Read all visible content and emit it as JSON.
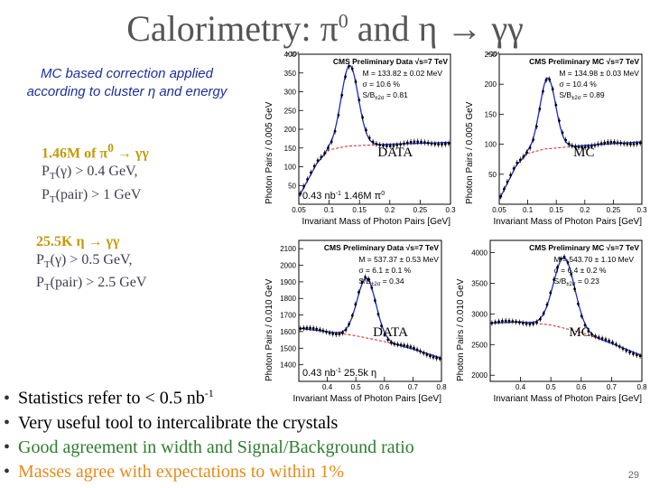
{
  "slide": {
    "title": "Calorimetry: π",
    "title_sup": "0",
    "title_rest": " and η → γγ",
    "mc_note_line1": "MC based correction applied",
    "mc_note_line2": "according to cluster η and energy",
    "pi0_cuts": {
      "head": "1.46M of π",
      "head_sup": "0",
      "head_tail": " → γγ",
      "line1": "P",
      "line1_sub": "T",
      "line1_rest": "(γ) > 0.4 GeV,",
      "line2": "P",
      "line2_sub": "T",
      "line2_rest": "(pair) > 1 GeV"
    },
    "eta_cuts": {
      "head": "25.5K η → γγ",
      "line1": "P",
      "line1_sub": "T",
      "line1_rest": "(γ) > 0.5 GeV,",
      "line2": "P",
      "line2_sub": "T",
      "line2_rest": "(pair) > 2.5 GeV"
    },
    "bullets": [
      {
        "text": "Statistics  refer to < 0.5 nb",
        "sup": "-1"
      },
      {
        "text": "Very useful tool to intercalibrate the crystals",
        "sup": ""
      },
      {
        "text": "Good agreement in width and Signal/Background ratio",
        "sup": ""
      },
      {
        "text": "Masses agree with expectations to within 1%",
        "sup": ""
      }
    ],
    "page_number": "29",
    "colors": {
      "title": "#555555",
      "note": "#1c2f9c",
      "cut_head": "#c39a06",
      "bullet3": "#2e7d2e",
      "bullet4": "#e88a18"
    }
  },
  "chart_data": [
    {
      "type": "scatter",
      "id": "pi0-data",
      "title": "CMS Preliminary Data √s=7 TeV",
      "ylabel": "Photon Pairs / 0.005 GeV",
      "xlabel": "Invariant Mass of Photon Pairs [GeV]",
      "y_multiplier": "×10³",
      "xlim": [
        0.05,
        0.3
      ],
      "ylim": [
        0,
        400
      ],
      "xticks": [
        0.05,
        0.1,
        0.15,
        0.2,
        0.25,
        0.3
      ],
      "xtick_labels": [
        "0.05",
        "0.1",
        "0.15",
        "0.2",
        "0.25",
        "0.3"
      ],
      "yticks": [
        50,
        100,
        150,
        200,
        250,
        300,
        350,
        400
      ],
      "ytick_labels": [
        "50",
        "100",
        "150",
        "200",
        "250",
        "300",
        "350",
        "400"
      ],
      "fit": {
        "peak": 0.13382,
        "sigma": 0.0142,
        "amp": 215,
        "bkg": [
          [
            0.05,
            20
          ],
          [
            0.08,
            110
          ],
          [
            0.1,
            145
          ],
          [
            0.13,
            155
          ],
          [
            0.2,
            160
          ],
          [
            0.3,
            165
          ]
        ]
      },
      "stats": [
        {
          "line": "M = 133.82 ± 0.02 MeV"
        },
        {
          "line": "σ = 10.6 %"
        },
        {
          "line": "S/B",
          "sub": "±2σ",
          "tail": " = 0.81"
        }
      ],
      "tag": "DATA",
      "caption": "0.43 nb",
      "caption_sup": "-1",
      "caption_tail": " 1.46M π",
      "caption_sup2": "0"
    },
    {
      "type": "scatter",
      "id": "pi0-mc",
      "title": "CMS Preliminary MC √s=7 TeV",
      "ylabel": "Photon Pairs / 0.005 GeV",
      "xlabel": "Invariant Mass of Photon Pairs [GeV]",
      "y_multiplier": "×10³",
      "xlim": [
        0.05,
        0.3
      ],
      "ylim": [
        0,
        250
      ],
      "xticks": [
        0.05,
        0.1,
        0.15,
        0.2,
        0.25,
        0.3
      ],
      "xtick_labels": [
        "0.05",
        "0.1",
        "0.15",
        "0.2",
        "0.25",
        "0.3"
      ],
      "yticks": [
        50,
        100,
        150,
        200,
        250
      ],
      "ytick_labels": [
        "50",
        "100",
        "150",
        "200",
        "250"
      ],
      "fit": {
        "peak": 0.13498,
        "sigma": 0.014,
        "amp": 118,
        "bkg": [
          [
            0.05,
            8
          ],
          [
            0.08,
            65
          ],
          [
            0.1,
            85
          ],
          [
            0.13,
            92
          ],
          [
            0.2,
            98
          ],
          [
            0.3,
            104
          ]
        ]
      },
      "stats": [
        {
          "line": "M = 134.98 ± 0.03 MeV"
        },
        {
          "line": "σ = 10.4 %"
        },
        {
          "line": "S/B",
          "sub": "±2σ",
          "tail": " = 0.89"
        }
      ],
      "tag": "MC"
    },
    {
      "type": "scatter",
      "id": "eta-data",
      "title": "CMS Preliminary Data √s=7 TeV",
      "ylabel": "Photon Pairs / 0.010 GeV",
      "xlabel": "Invariant Mass of Photon Pairs [GeV]",
      "xlim": [
        0.3,
        0.8
      ],
      "ylim": [
        1300,
        2150
      ],
      "xticks": [
        0.4,
        0.5,
        0.6,
        0.7,
        0.8
      ],
      "xtick_labels": [
        "0.4",
        "0.5",
        "0.6",
        "0.7",
        "0.8"
      ],
      "yticks": [
        1400,
        1500,
        1600,
        1700,
        1800,
        1900,
        2000,
        2100
      ],
      "ytick_labels": [
        "1400",
        "1500",
        "1600",
        "1700",
        "1800",
        "1900",
        "2000",
        "2100"
      ],
      "fit": {
        "peak": 0.53737,
        "sigma": 0.0328,
        "amp": 360,
        "bkg": [
          [
            0.3,
            1620
          ],
          [
            0.4,
            1600
          ],
          [
            0.5,
            1575
          ],
          [
            0.6,
            1540
          ],
          [
            0.7,
            1495
          ],
          [
            0.8,
            1440
          ]
        ]
      },
      "stats": [
        {
          "line": "M = 537.37 ± 0.53 MeV"
        },
        {
          "line": "σ = 6.1 ± 0.1 %"
        },
        {
          "line": "S/B",
          "sub": "±2σ",
          "tail": " = 0.34"
        }
      ],
      "tag": "DATA",
      "caption": "0.43 nb",
      "caption_sup": "-1",
      "caption_tail": " 25.5k η"
    },
    {
      "type": "scatter",
      "id": "eta-mc",
      "title": "CMS Preliminary MC √s=7 TeV",
      "ylabel": "Photon Pairs / 0.010 GeV",
      "xlabel": "Invariant Mass of Photon Pairs [GeV]",
      "xlim": [
        0.3,
        0.8
      ],
      "ylim": [
        1900,
        4200
      ],
      "xticks": [
        0.4,
        0.5,
        0.6,
        0.7,
        0.8
      ],
      "xtick_labels": [
        "0.4",
        "0.5",
        "0.6",
        "0.7",
        "0.8"
      ],
      "yticks": [
        2000,
        2500,
        3000,
        3500,
        4000
      ],
      "ytick_labels": [
        "2000",
        "2500",
        "3000",
        "3500",
        "4000"
      ],
      "fit": {
        "peak": 0.5437,
        "sigma": 0.0348,
        "amp": 1150,
        "bkg": [
          [
            0.3,
            2850
          ],
          [
            0.4,
            2870
          ],
          [
            0.5,
            2820
          ],
          [
            0.6,
            2700
          ],
          [
            0.7,
            2520
          ],
          [
            0.8,
            2320
          ]
        ]
      },
      "stats": [
        {
          "line": "M = 543.70 ± 1.10 MeV"
        },
        {
          "line": "σ = 6.4 ± 0.2 %"
        },
        {
          "line": "S/B",
          "sub": "±2σ",
          "tail": " = 0.23"
        }
      ],
      "tag": "MC"
    }
  ]
}
